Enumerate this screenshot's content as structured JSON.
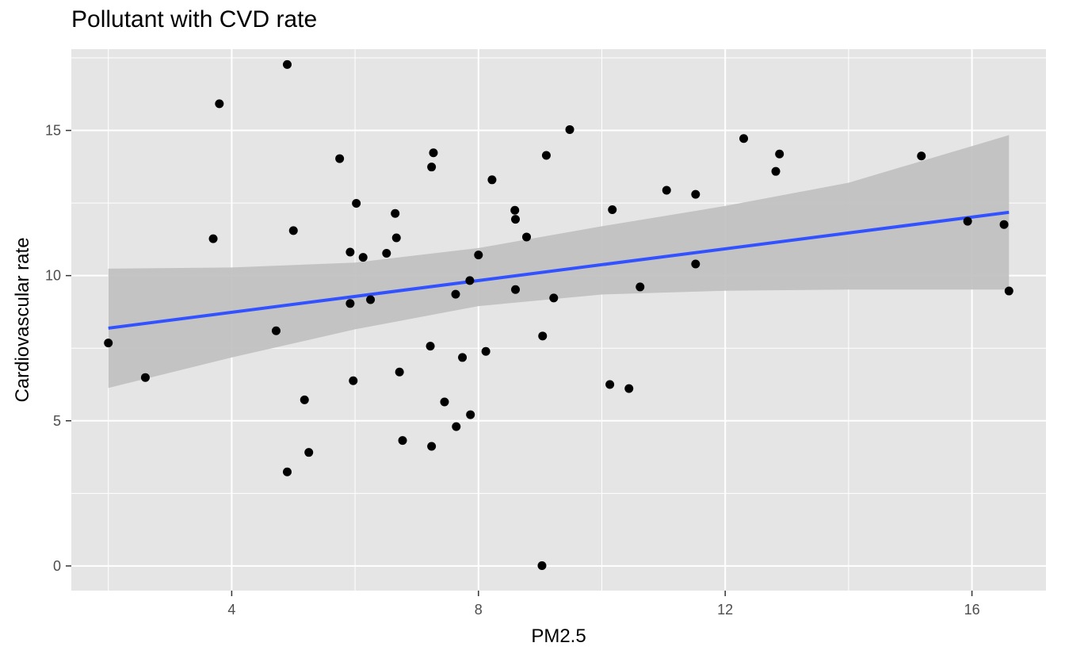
{
  "chart_data": {
    "type": "scatter",
    "title": "Pollutant with CVD rate",
    "xlabel": "PM2.5",
    "ylabel": "Cardiovascular rate",
    "xlim": [
      1.4,
      17.2
    ],
    "ylim": [
      -0.85,
      17.8
    ],
    "x_ticks": [
      4,
      8,
      12,
      16
    ],
    "x_tick_labels": [
      "4",
      "8",
      "12",
      "16"
    ],
    "y_ticks": [
      0,
      5,
      10,
      15
    ],
    "y_tick_labels": [
      "0",
      "5",
      "10",
      "15"
    ],
    "grid": true,
    "legend": "none",
    "colors": {
      "panel": "#e5e5e5",
      "grid": "#ffffff",
      "point": "#000000",
      "fit": "#3352ff",
      "band": "#bfbfbf"
    },
    "points": [
      {
        "x": 2.0,
        "y": 7.68
      },
      {
        "x": 2.6,
        "y": 6.49
      },
      {
        "x": 3.7,
        "y": 11.27
      },
      {
        "x": 3.8,
        "y": 15.92
      },
      {
        "x": 4.72,
        "y": 8.1
      },
      {
        "x": 4.9,
        "y": 17.27
      },
      {
        "x": 4.9,
        "y": 3.24
      },
      {
        "x": 5.0,
        "y": 11.55
      },
      {
        "x": 5.18,
        "y": 5.72
      },
      {
        "x": 5.25,
        "y": 3.91
      },
      {
        "x": 5.75,
        "y": 14.03
      },
      {
        "x": 5.92,
        "y": 10.81
      },
      {
        "x": 5.92,
        "y": 9.04
      },
      {
        "x": 5.97,
        "y": 6.38
      },
      {
        "x": 6.02,
        "y": 12.49
      },
      {
        "x": 6.13,
        "y": 10.63
      },
      {
        "x": 6.25,
        "y": 9.17
      },
      {
        "x": 6.51,
        "y": 10.77
      },
      {
        "x": 6.65,
        "y": 12.14
      },
      {
        "x": 6.67,
        "y": 11.3
      },
      {
        "x": 6.72,
        "y": 6.68
      },
      {
        "x": 6.77,
        "y": 4.32
      },
      {
        "x": 7.22,
        "y": 7.57
      },
      {
        "x": 7.24,
        "y": 13.74
      },
      {
        "x": 7.24,
        "y": 4.12
      },
      {
        "x": 7.27,
        "y": 14.23
      },
      {
        "x": 7.45,
        "y": 5.65
      },
      {
        "x": 7.63,
        "y": 9.36
      },
      {
        "x": 7.64,
        "y": 4.8
      },
      {
        "x": 7.74,
        "y": 7.18
      },
      {
        "x": 7.86,
        "y": 9.83
      },
      {
        "x": 7.87,
        "y": 5.21
      },
      {
        "x": 8.0,
        "y": 10.71
      },
      {
        "x": 8.12,
        "y": 7.39
      },
      {
        "x": 8.22,
        "y": 13.3
      },
      {
        "x": 8.59,
        "y": 12.25
      },
      {
        "x": 8.6,
        "y": 11.94
      },
      {
        "x": 8.6,
        "y": 9.52
      },
      {
        "x": 8.78,
        "y": 11.33
      },
      {
        "x": 9.03,
        "y": 0.01
      },
      {
        "x": 9.04,
        "y": 7.92
      },
      {
        "x": 9.1,
        "y": 14.14
      },
      {
        "x": 9.22,
        "y": 9.23
      },
      {
        "x": 9.48,
        "y": 15.03
      },
      {
        "x": 10.13,
        "y": 6.25
      },
      {
        "x": 10.17,
        "y": 12.27
      },
      {
        "x": 10.44,
        "y": 6.11
      },
      {
        "x": 10.62,
        "y": 9.61
      },
      {
        "x": 11.05,
        "y": 12.94
      },
      {
        "x": 11.52,
        "y": 12.8
      },
      {
        "x": 11.52,
        "y": 10.4
      },
      {
        "x": 12.3,
        "y": 14.72
      },
      {
        "x": 12.82,
        "y": 13.59
      },
      {
        "x": 12.88,
        "y": 14.19
      },
      {
        "x": 15.18,
        "y": 14.12
      },
      {
        "x": 15.93,
        "y": 11.87
      },
      {
        "x": 16.52,
        "y": 11.76
      },
      {
        "x": 16.6,
        "y": 9.47
      }
    ],
    "fit_line": {
      "x": [
        2.0,
        16.6
      ],
      "y": [
        8.19,
        12.18
      ]
    },
    "confidence_band": {
      "x": [
        2.0,
        4.0,
        6.0,
        8.0,
        10.0,
        12.0,
        14.0,
        16.6
      ],
      "upper": [
        10.24,
        10.28,
        10.45,
        10.95,
        11.7,
        12.4,
        13.2,
        14.84
      ],
      "lower": [
        6.13,
        7.18,
        8.15,
        8.95,
        9.35,
        9.48,
        9.52,
        9.52
      ]
    }
  }
}
